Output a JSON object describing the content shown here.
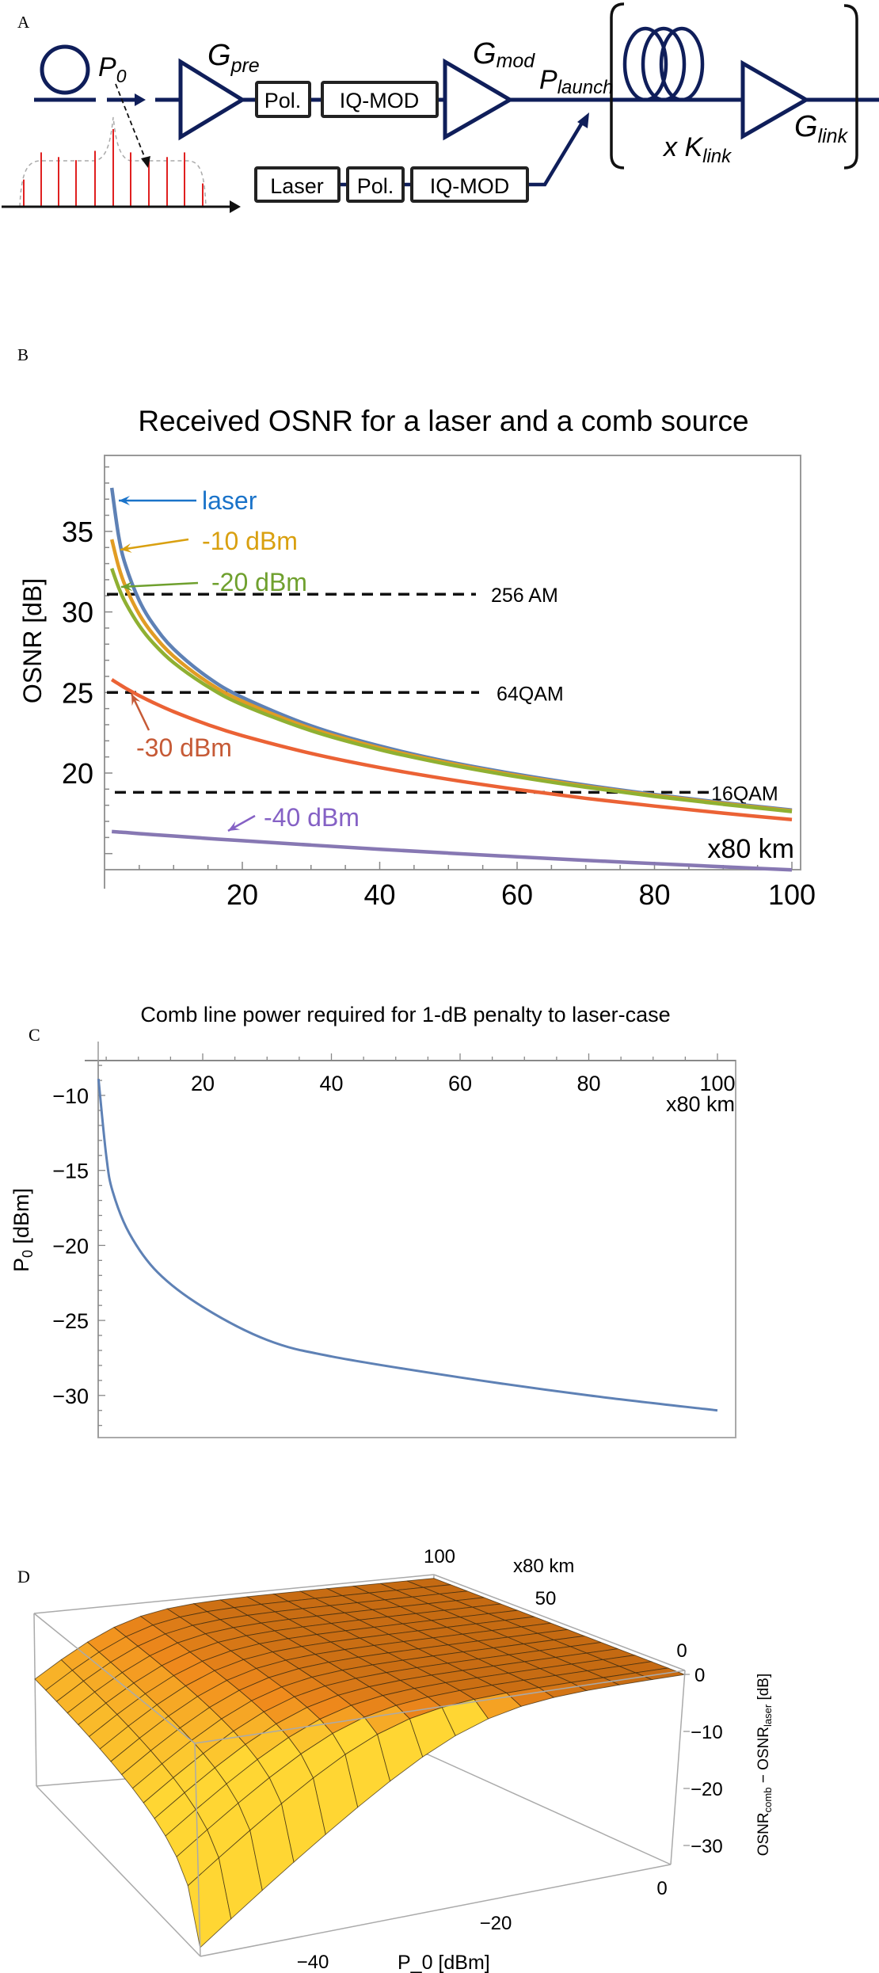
{
  "panels": {
    "a": "A",
    "b": "B",
    "c": "C",
    "d": "D"
  },
  "diagram": {
    "p0": {
      "main": "P",
      "sub": "0"
    },
    "gpre": {
      "main": "G",
      "sub": "pre"
    },
    "gmod": {
      "main": "G",
      "sub": "mod"
    },
    "plaunch": {
      "main": "P",
      "sub": "launch"
    },
    "glink": {
      "main": "G",
      "sub": "link"
    },
    "klink": {
      "prefix": "x ",
      "main": "K",
      "sub": "link"
    },
    "boxes": {
      "pol1": "Pol.",
      "iq1": "IQ-MOD",
      "laser": "Laser",
      "pol2": "Pol.",
      "iq2": "IQ-MOD"
    },
    "colors": {
      "line": "#0f1e5a",
      "comb": "#e02020",
      "envelope": "#aaaaaa"
    },
    "comb_line_heights": [
      0.35,
      0.7,
      0.64,
      0.6,
      0.72,
      1.0,
      0.7,
      0.6,
      0.64,
      0.7,
      0.3
    ]
  },
  "chart_data": [
    {
      "type": "line",
      "title": "Received OSNR for a laser and a comb source",
      "xlabel": "x80 km",
      "ylabel": "OSNR [dB]",
      "xlim": [
        0,
        101.5
      ],
      "ylim": [
        14,
        39.7
      ],
      "xticks": [
        20,
        40,
        60,
        80,
        100
      ],
      "yticks": [
        20,
        25,
        30,
        35
      ],
      "grid": false,
      "x": [
        1,
        2,
        3,
        5,
        7,
        10,
        15,
        20,
        30,
        40,
        50,
        60,
        70,
        80,
        90,
        100
      ],
      "series": [
        {
          "name": "laser",
          "color": "#5e81b5",
          "label_color": "#1a73c9",
          "values": [
            37.7,
            34.7,
            32.9,
            30.7,
            29.25,
            27.7,
            25.94,
            24.7,
            22.93,
            21.68,
            20.7,
            19.92,
            19.25,
            18.67,
            18.16,
            17.7
          ]
        },
        {
          "name": "-10 dBm",
          "color": "#e19c24",
          "label_color": "#d9a010",
          "values": [
            34.5,
            32.8,
            31.58,
            29.85,
            28.62,
            27.25,
            25.63,
            24.46,
            22.77,
            21.56,
            20.62,
            19.84,
            19.18,
            18.61,
            18.11,
            17.65
          ]
        },
        {
          "name": "-20 dBm",
          "color": "#8fb032",
          "label_color": "#6fa02e",
          "values": [
            32.7,
            31.51,
            30.57,
            29.15,
            28.08,
            26.85,
            25.36,
            24.24,
            22.63,
            21.45,
            20.53,
            19.77,
            19.12,
            18.55,
            18.06,
            17.61
          ]
        },
        {
          "name": "-30 dBm",
          "color": "#eb6235",
          "label_color": "#c65a36",
          "values": [
            25.8,
            25.53,
            25.27,
            24.8,
            24.38,
            23.81,
            23.0,
            22.32,
            21.22,
            20.34,
            19.61,
            18.98,
            18.43,
            17.95,
            17.51,
            17.11
          ]
        },
        {
          "name": "-40 dBm",
          "color": "#8778b3",
          "label_color": "#8561c5",
          "values": [
            16.37,
            16.34,
            16.31,
            16.24,
            16.18,
            16.09,
            15.94,
            15.8,
            15.53,
            15.27,
            15.03,
            14.8,
            14.58,
            14.38,
            14.18,
            13.99
          ]
        }
      ],
      "thresholds": [
        {
          "label": "256 AM",
          "value": 31.1
        },
        {
          "label": "64QAM",
          "value": 25.0
        },
        {
          "label": "16QAM",
          "value": 18.8
        }
      ]
    },
    {
      "type": "line",
      "title": "Comb line power required for 1-dB penalty to laser-case",
      "xlabel": "x80 km",
      "ylabel": {
        "main": "P",
        "sub": "0",
        "rest": " [dBm]"
      },
      "xlim": [
        3.8,
        102
      ],
      "ylim": [
        -32.8,
        -7.7
      ],
      "xticks": [
        20,
        40,
        60,
        80,
        100
      ],
      "yticks": [
        -10,
        -15,
        -20,
        -25,
        -30
      ],
      "xaxis_position": "top",
      "grid": false,
      "series": [
        {
          "name": "P0",
          "color": "#5e81b5",
          "x": [
            3.8,
            5,
            6,
            8.6,
            13,
            20,
            30,
            40,
            60,
            80,
            100
          ],
          "values": [
            -8.9,
            -14.0,
            -16.4,
            -19.2,
            -21.8,
            -24.1,
            -26.3,
            -27.4,
            -28.8,
            -30.0,
            -31.0
          ]
        }
      ]
    },
    {
      "type": "surface",
      "xlabel": "P_0 [dBm]",
      "ylabel": "x80 km",
      "zlabel": {
        "a": "OSNR",
        "a_sub": "comb",
        "mid": " − OSNR",
        "b_sub": "laser",
        "rest": " [dB]"
      },
      "xlim": [
        -55,
        0
      ],
      "ylim": [
        1,
        100
      ],
      "zlim": [
        -33.4,
        0.7
      ],
      "xticks": [
        {
          "v": -40,
          "label": "−40"
        },
        {
          "v": -20,
          "label": "−20"
        },
        {
          "v": 0,
          "label": "0"
        }
      ],
      "yticks": [
        {
          "v": 0,
          "label": "0"
        },
        {
          "v": 50,
          "label": "50"
        },
        {
          "v": 100,
          "label": "100"
        }
      ],
      "zticks": [
        {
          "v": 0,
          "label": "0"
        },
        {
          "v": -10,
          "label": "−10"
        },
        {
          "v": -20,
          "label": "−20"
        },
        {
          "v": -30,
          "label": "−30"
        }
      ],
      "mesh": 15,
      "colors": {
        "flat": "#c56a12",
        "mid": "#f08a1c",
        "steep": "#ffd633"
      }
    }
  ]
}
